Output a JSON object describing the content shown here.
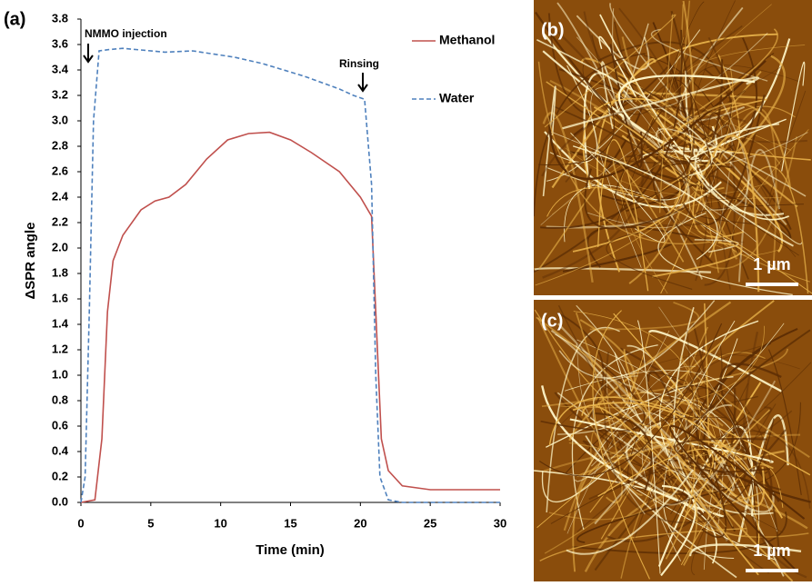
{
  "chart_data": {
    "type": "line",
    "panel_label": "(a)",
    "x_label": "Time (min)",
    "y_label": "ΔSPR angle",
    "xlim": [
      0,
      30
    ],
    "xticks": [
      0,
      5,
      10,
      15,
      20,
      25,
      30
    ],
    "ylim": [
      0,
      3.8
    ],
    "yticks": [
      {
        "value": 0,
        "label": "0.0"
      },
      {
        "value": 0.2,
        "label": "0.2"
      },
      {
        "value": 0.4,
        "label": "0.4"
      },
      {
        "value": 0.6,
        "label": "0.6"
      },
      {
        "value": 0.8,
        "label": "0.8"
      },
      {
        "value": 1,
        "label": "1.0"
      },
      {
        "value": 1.2,
        "label": "1.2"
      },
      {
        "value": 1.4,
        "label": "1.4"
      },
      {
        "value": 1.6,
        "label": "1.6"
      },
      {
        "value": 1.8,
        "label": "1.8"
      },
      {
        "value": 2,
        "label": "2.0"
      },
      {
        "value": 2.2,
        "label": "2.2"
      },
      {
        "value": 2.4,
        "label": "2.4"
      },
      {
        "value": 2.6,
        "label": "2.6"
      },
      {
        "value": 2.8,
        "label": "2.8"
      },
      {
        "value": 3,
        "label": "3.0"
      },
      {
        "value": 3.2,
        "label": "3.2"
      },
      {
        "value": 3.4,
        "label": "3.4"
      },
      {
        "value": 3.6,
        "label": "3.6"
      },
      {
        "value": 3.8,
        "label": "3.8"
      }
    ],
    "legend": "top-right",
    "annotations": [
      "NMMO injection",
      "Rinsing"
    ],
    "series": [
      {
        "name": "Methanol",
        "color": "#c0504d",
        "dash": false,
        "x": [
          0,
          1,
          1.5,
          1.9,
          2.3,
          3,
          4.3,
          5.3,
          6.3,
          7.5,
          9,
          10.5,
          12,
          13.5,
          15,
          16.5,
          18.5,
          20,
          20.8,
          21.1,
          21.5,
          22,
          23,
          25,
          30
        ],
        "values": [
          0,
          0.02,
          0.5,
          1.5,
          1.9,
          2.1,
          2.3,
          2.37,
          2.4,
          2.5,
          2.7,
          2.85,
          2.9,
          2.91,
          2.85,
          2.75,
          2.6,
          2.4,
          2.25,
          1.5,
          0.5,
          0.25,
          0.13,
          0.1,
          0.1
        ]
      },
      {
        "name": "Water",
        "color": "#4f81bd",
        "dash": true,
        "x": [
          0,
          0.3,
          0.6,
          0.9,
          1.3,
          2,
          3,
          6,
          8,
          11,
          13,
          16,
          18.5,
          19.5,
          20.3,
          20.8,
          21.1,
          21.4,
          22,
          23,
          30
        ],
        "values": [
          0,
          0.2,
          1.5,
          3.0,
          3.55,
          3.56,
          3.57,
          3.54,
          3.55,
          3.5,
          3.45,
          3.35,
          3.25,
          3.2,
          3.17,
          2.5,
          1.0,
          0.2,
          0.02,
          0,
          0
        ]
      }
    ]
  },
  "images": [
    {
      "label": "(b)",
      "scale_bar": "1 µm"
    },
    {
      "label": "(c)",
      "scale_bar": "1 µm"
    }
  ]
}
